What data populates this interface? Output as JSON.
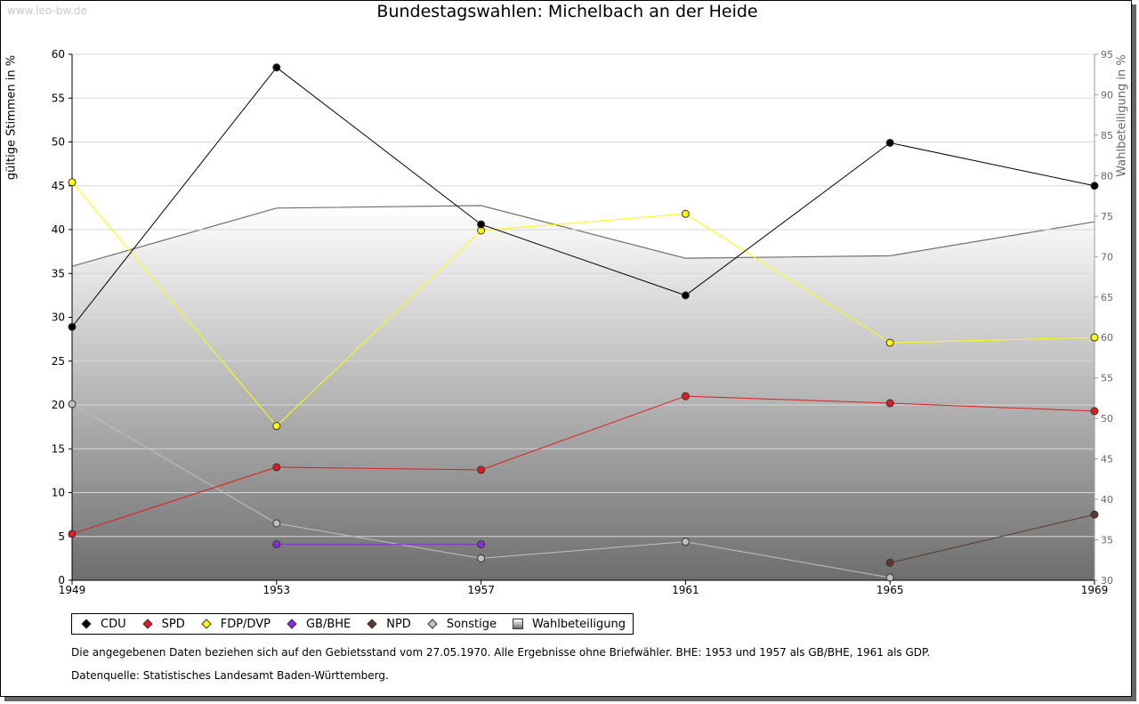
{
  "watermark": "www.leo-bw.de",
  "chart_data": {
    "type": "line",
    "title": "Bundestagswahlen: Michelbach an der Heide",
    "ylabel": "gültige Stimmen in %",
    "y2label": "Wahlbeteiligung in %",
    "x": [
      1949,
      1953,
      1957,
      1961,
      1965,
      1969
    ],
    "xlim": [
      1949,
      1969
    ],
    "ylim": [
      0,
      60
    ],
    "y2lim": [
      30,
      95
    ],
    "yticks": [
      0,
      5,
      10,
      15,
      20,
      25,
      30,
      35,
      40,
      45,
      50,
      55,
      60
    ],
    "y2ticks": [
      30,
      35,
      40,
      45,
      50,
      55,
      60,
      65,
      70,
      75,
      80,
      85,
      90,
      95
    ],
    "grid": true,
    "legend_position": "bottom",
    "series": [
      {
        "name": "CDU",
        "color": "#000000",
        "values": [
          28.9,
          58.5,
          40.6,
          32.5,
          49.9,
          45.0
        ]
      },
      {
        "name": "SPD",
        "color": "#e31a1c",
        "values": [
          5.3,
          12.9,
          12.6,
          21.0,
          20.2,
          19.3
        ]
      },
      {
        "name": "FDP/DVP",
        "color": "#ffff00",
        "values": [
          45.4,
          17.6,
          39.9,
          41.8,
          27.1,
          27.7
        ]
      },
      {
        "name": "GB/BHE",
        "color": "#8a2be2",
        "values": [
          null,
          4.1,
          4.1,
          null,
          null,
          null
        ]
      },
      {
        "name": "NPD",
        "color": "#5b3a29",
        "values": [
          null,
          null,
          null,
          null,
          2.0,
          7.5
        ]
      },
      {
        "name": "Sonstige",
        "color": "#c0c0c0",
        "values": [
          20.1,
          6.5,
          2.5,
          4.4,
          0.3,
          null
        ]
      }
    ],
    "turnout": {
      "name": "Wahlbeteiligung",
      "color": "#707070",
      "axis": "right",
      "values": [
        68.8,
        76.0,
        76.3,
        69.8,
        70.1,
        74.3
      ]
    }
  },
  "notes": [
    "Die angegebenen Daten beziehen sich auf den Gebietsstand vom 27.05.1970. Alle Ergebnisse ohne Briefwähler. BHE: 1953 und 1957 als GB/BHE, 1961 als GDP.",
    "Datenquelle: Statistisches Landesamt Baden-Württemberg."
  ]
}
